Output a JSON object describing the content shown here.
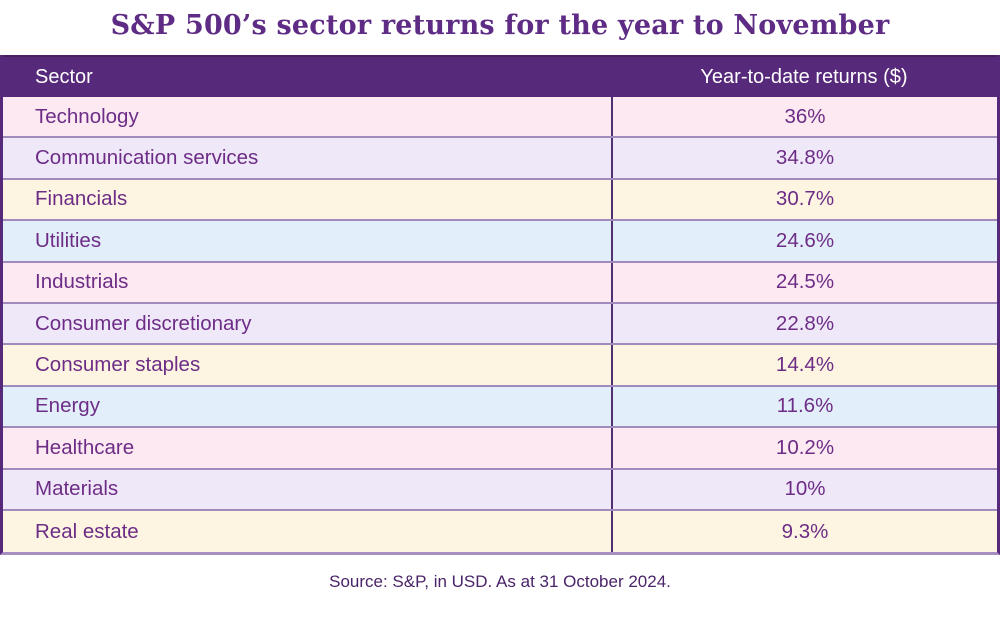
{
  "title": "S&P 500’s sector returns for the year to November",
  "table": {
    "headers": [
      "Sector",
      "Year-to-date returns ($)"
    ],
    "rows": [
      {
        "sector": "Technology",
        "value": "36%"
      },
      {
        "sector": "Communication services",
        "value": "34.8%"
      },
      {
        "sector": "Financials",
        "value": "30.7%"
      },
      {
        "sector": "Utilities",
        "value": "24.6%"
      },
      {
        "sector": "Industrials",
        "value": "24.5%"
      },
      {
        "sector": "Consumer discretionary",
        "value": "22.8%"
      },
      {
        "sector": "Consumer staples",
        "value": "14.4%"
      },
      {
        "sector": "Energy",
        "value": "11.6%"
      },
      {
        "sector": "Healthcare",
        "value": "10.2%"
      },
      {
        "sector": "Materials",
        "value": "10%"
      },
      {
        "sector": "Real estate",
        "value": "9.3%"
      }
    ]
  },
  "source_note": "Source: S&P, in USD. As at 31 October 2024.",
  "colors": {
    "header_bg": "#57297b",
    "row_pink": "#fce9f2",
    "row_lavender": "#efe8f9",
    "row_cream": "#fdf5e1",
    "row_blue": "#e3eefb",
    "text_purple": "#6d2d86",
    "title_purple": "#5e2c84",
    "separator": "#a18abc",
    "column_divider": "#503070",
    "bottom_border": "#a98fc1"
  },
  "chart_data": {
    "type": "table",
    "title": "S&P 500’s sector returns for the year to November",
    "columns": [
      "Sector",
      "Year-to-date returns ($)"
    ],
    "categories": [
      "Technology",
      "Communication services",
      "Financials",
      "Utilities",
      "Industrials",
      "Consumer discretionary",
      "Consumer staples",
      "Energy",
      "Healthcare",
      "Materials",
      "Real estate"
    ],
    "values": [
      36,
      34.8,
      30.7,
      24.6,
      24.5,
      22.8,
      14.4,
      11.6,
      10.2,
      10,
      9.3
    ],
    "value_labels": [
      "36%",
      "34.8%",
      "30.7%",
      "24.6%",
      "24.5%",
      "22.8%",
      "14.4%",
      "11.6%",
      "10.2%",
      "10%",
      "9.3%"
    ],
    "unit": "percent",
    "source": "Source: S&P, in USD. As at 31 October 2024."
  }
}
